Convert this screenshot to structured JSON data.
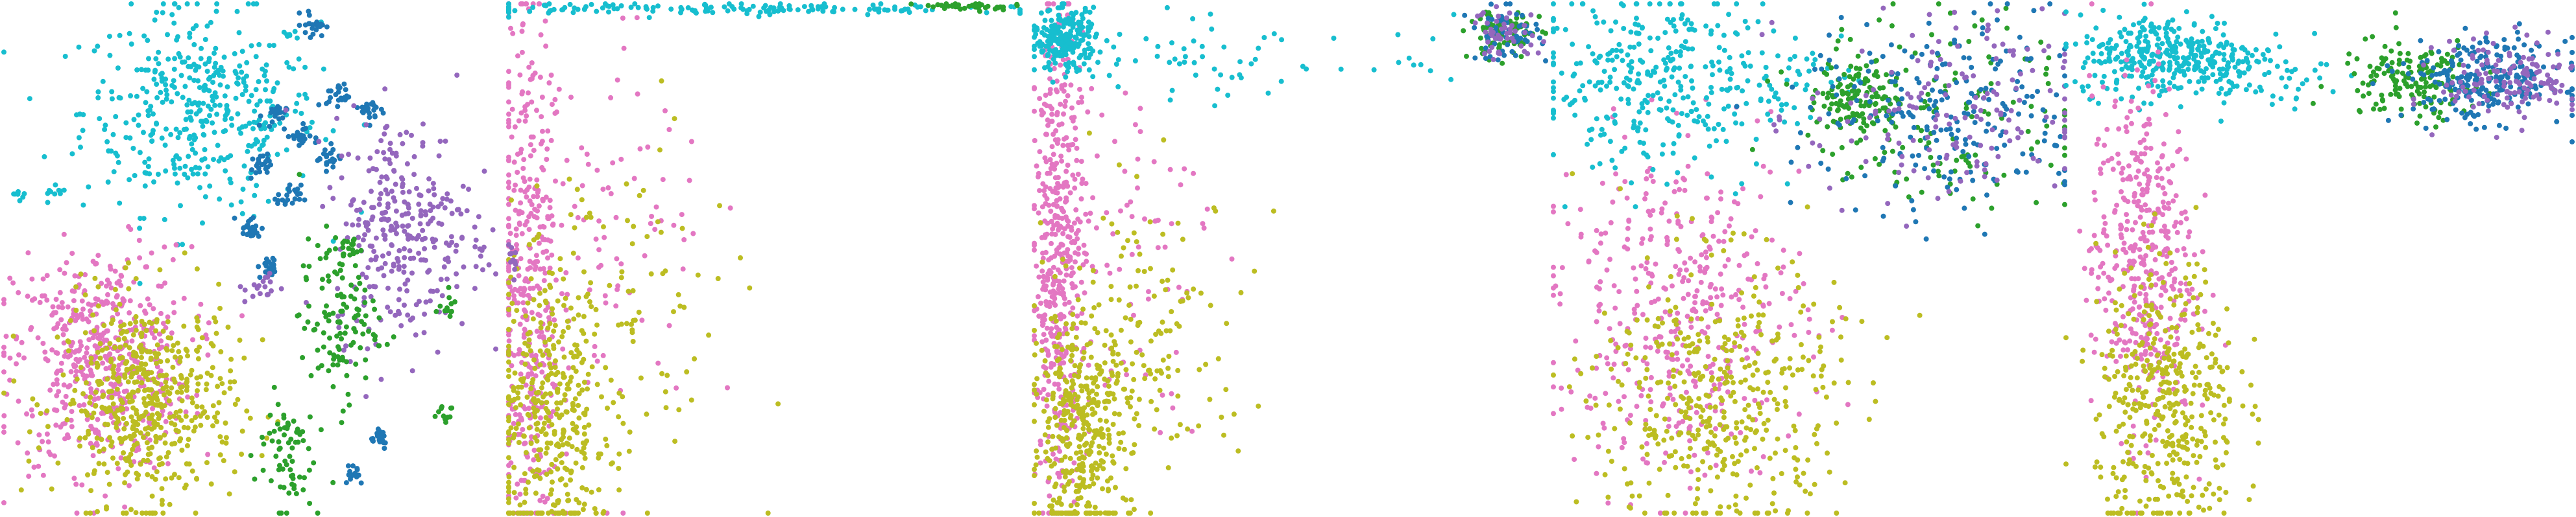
{
  "chart_data": [
    {
      "type": "scatter",
      "grid": false,
      "xlim": [
        0,
        100
      ],
      "ylim": [
        0,
        100
      ],
      "series": [
        {
          "color": "#17becf",
          "clusters": [
            {
              "cx": 40,
              "cy": 79,
              "sx": 12,
              "sy": 10,
              "n": 420
            },
            {
              "cx": 3,
              "cy": 63,
              "sx": 1,
              "sy": 1,
              "n": 8
            },
            {
              "cx": 10,
              "cy": 62,
              "sx": 1.5,
              "sy": 1,
              "n": 10
            }
          ]
        },
        {
          "color": "#e377c2",
          "clusters": [
            {
              "cx": 20,
              "cy": 30,
              "sx": 9,
              "sy": 11,
              "n": 520
            }
          ]
        },
        {
          "color": "#bcbd22",
          "clusters": [
            {
              "cx": 29,
              "cy": 22,
              "sx": 9,
              "sy": 10,
              "n": 520
            }
          ]
        },
        {
          "color": "#1f77b4",
          "clusters": [
            {
              "cx": 55,
              "cy": 78,
              "sx": 1.2,
              "sy": 1.2,
              "n": 22
            },
            {
              "cx": 60,
              "cy": 74,
              "sx": 1.2,
              "sy": 1.2,
              "n": 22
            },
            {
              "cx": 52,
              "cy": 68,
              "sx": 1.2,
              "sy": 1.2,
              "n": 22
            },
            {
              "cx": 58,
              "cy": 62,
              "sx": 1.2,
              "sy": 1.2,
              "n": 22
            },
            {
              "cx": 50,
              "cy": 56,
              "sx": 1.2,
              "sy": 1.2,
              "n": 22
            },
            {
              "cx": 54,
              "cy": 48,
              "sx": 1.2,
              "sy": 1.2,
              "n": 22
            },
            {
              "cx": 63,
              "cy": 96,
              "sx": 1.2,
              "sy": 1.2,
              "n": 22
            },
            {
              "cx": 68,
              "cy": 82,
              "sx": 1.2,
              "sy": 1.2,
              "n": 22
            },
            {
              "cx": 66,
              "cy": 70,
              "sx": 1.2,
              "sy": 1.2,
              "n": 22
            },
            {
              "cx": 75,
              "cy": 79,
              "sx": 1.2,
              "sy": 1.2,
              "n": 22
            },
            {
              "cx": 76,
              "cy": 15,
              "sx": 1.2,
              "sy": 1.2,
              "n": 22
            },
            {
              "cx": 71,
              "cy": 8,
              "sx": 1.2,
              "sy": 1.2,
              "n": 16
            }
          ]
        },
        {
          "color": "#9467bd",
          "clusters": [
            {
              "cx": 81,
              "cy": 56,
              "sx": 7,
              "sy": 11,
              "n": 300
            },
            {
              "cx": 53,
              "cy": 44,
              "sx": 2,
              "sy": 1.5,
              "n": 18
            },
            {
              "cx": 97,
              "cy": 50,
              "sx": 1,
              "sy": 2,
              "n": 8
            }
          ]
        },
        {
          "color": "#2ca02c",
          "clusters": [
            {
              "cx": 68,
              "cy": 38,
              "sx": 4,
              "sy": 8,
              "n": 120
            },
            {
              "cx": 57,
              "cy": 12,
              "sx": 3,
              "sy": 6,
              "n": 70
            },
            {
              "cx": 70,
              "cy": 52,
              "sx": 1.5,
              "sy": 1.5,
              "n": 18
            },
            {
              "cx": 90,
              "cy": 40,
              "sx": 1.2,
              "sy": 1.2,
              "n": 12
            },
            {
              "cx": 89,
              "cy": 20,
              "sx": 1.2,
              "sy": 1.2,
              "n": 12
            }
          ]
        }
      ]
    },
    {
      "type": "scatter",
      "grid": false,
      "xlim": [
        0,
        100
      ],
      "ylim": [
        0,
        100
      ],
      "series": [
        {
          "color": "#e377c2",
          "clusters": [
            {
              "cx": 4,
              "cy": 45,
              "sx": 3,
              "sy": 28,
              "n": 380
            },
            {
              "cx": 15,
              "cy": 55,
              "sx": 12,
              "sy": 22,
              "n": 120
            }
          ]
        },
        {
          "color": "#bcbd22",
          "clusters": [
            {
              "cx": 8,
              "cy": 18,
              "sx": 6,
              "sy": 14,
              "n": 360
            },
            {
              "cx": 20,
              "cy": 35,
              "sx": 12,
              "sy": 18,
              "n": 110
            }
          ]
        },
        {
          "color": "#17becf",
          "clusters": [
            {
              "cx": 40,
              "cy": 99,
              "sx": 30,
              "sy": 0.6,
              "n": 160
            }
          ]
        },
        {
          "color": "#2ca02c",
          "clusters": [
            {
              "cx": 90,
              "cy": 99.5,
              "sx": 5,
              "sy": 0.4,
              "n": 40
            }
          ]
        },
        {
          "color": "#9467bd",
          "clusters": [
            {
              "cx": 0.5,
              "cy": 50,
              "sx": 0.5,
              "sy": 2,
              "n": 12
            }
          ]
        }
      ]
    },
    {
      "type": "scatter",
      "grid": false,
      "xlim": [
        0,
        100
      ],
      "ylim": [
        0,
        100
      ],
      "series": [
        {
          "color": "#e377c2",
          "clusters": [
            {
              "cx": 5,
              "cy": 50,
              "sx": 2.5,
              "sy": 24,
              "n": 450
            },
            {
              "cx": 15,
              "cy": 55,
              "sx": 10,
              "sy": 18,
              "n": 90
            }
          ]
        },
        {
          "color": "#bcbd22",
          "clusters": [
            {
              "cx": 9,
              "cy": 15,
              "sx": 5,
              "sy": 12,
              "n": 380
            },
            {
              "cx": 22,
              "cy": 35,
              "sx": 10,
              "sy": 14,
              "n": 140
            }
          ]
        },
        {
          "color": "#17becf",
          "clusters": [
            {
              "cx": 6,
              "cy": 93,
              "sx": 3,
              "sy": 3,
              "n": 220
            },
            {
              "cx": 30,
              "cy": 88,
              "sx": 14,
              "sy": 4,
              "n": 50
            },
            {
              "cx": 70,
              "cy": 88,
              "sx": 10,
              "sy": 3,
              "n": 14
            }
          ]
        },
        {
          "color": "#2ca02c",
          "clusters": [
            {
              "cx": 92,
              "cy": 94,
              "sx": 3.5,
              "sy": 2.5,
              "n": 90
            }
          ]
        },
        {
          "color": "#1f77b4",
          "clusters": [
            {
              "cx": 92,
              "cy": 94,
              "sx": 3.5,
              "sy": 2.5,
              "n": 60
            }
          ]
        },
        {
          "color": "#9467bd",
          "clusters": [
            {
              "cx": 92,
              "cy": 94,
              "sx": 3.5,
              "sy": 2.5,
              "n": 50
            }
          ]
        }
      ]
    },
    {
      "type": "scatter",
      "grid": false,
      "xlim": [
        0,
        100
      ],
      "ylim": [
        0,
        100
      ],
      "series": [
        {
          "color": "#e377c2",
          "clusters": [
            {
              "cx": 25,
              "cy": 40,
              "sx": 12,
              "sy": 16,
              "n": 420
            }
          ]
        },
        {
          "color": "#bcbd22",
          "clusters": [
            {
              "cx": 32,
              "cy": 22,
              "sx": 12,
              "sy": 14,
              "n": 420
            }
          ]
        },
        {
          "color": "#17becf",
          "clusters": [
            {
              "cx": 18,
              "cy": 85,
              "sx": 12,
              "sy": 9,
              "n": 300
            },
            {
              "cx": 40,
              "cy": 85,
              "sx": 8,
              "sy": 4,
              "n": 60
            }
          ]
        },
        {
          "color": "#2ca02c",
          "clusters": [
            {
              "cx": 60,
              "cy": 82,
              "sx": 4,
              "sy": 4,
              "n": 120
            },
            {
              "cx": 77,
              "cy": 78,
              "sx": 14,
              "sy": 10,
              "n": 140
            }
          ]
        },
        {
          "color": "#1f77b4",
          "clusters": [
            {
              "cx": 77,
              "cy": 78,
              "sx": 14,
              "sy": 10,
              "n": 220
            }
          ]
        },
        {
          "color": "#9467bd",
          "clusters": [
            {
              "cx": 77,
              "cy": 78,
              "sx": 14,
              "sy": 10,
              "n": 160
            }
          ]
        }
      ]
    },
    {
      "type": "scatter",
      "grid": false,
      "xlim": [
        0,
        100
      ],
      "ylim": [
        0,
        100
      ],
      "series": [
        {
          "color": "#17becf",
          "clusters": [
            {
              "cx": 20,
              "cy": 90,
              "sx": 9,
              "sy": 4,
              "n": 330
            },
            {
              "cx": 38,
              "cy": 86,
              "sx": 7,
              "sy": 3,
              "n": 60
            }
          ]
        },
        {
          "color": "#e377c2",
          "clusters": [
            {
              "cx": 15,
              "cy": 50,
              "sx": 5,
              "sy": 17,
              "n": 420
            }
          ]
        },
        {
          "color": "#bcbd22",
          "clusters": [
            {
              "cx": 20,
              "cy": 22,
              "sx": 7,
              "sy": 14,
              "n": 420
            }
          ]
        },
        {
          "color": "#2ca02c",
          "clusters": [
            {
              "cx": 68,
              "cy": 85,
              "sx": 7,
              "sy": 4,
              "n": 160
            }
          ]
        },
        {
          "color": "#1f77b4",
          "clusters": [
            {
              "cx": 83,
              "cy": 85,
              "sx": 8,
              "sy": 4,
              "n": 240
            }
          ]
        },
        {
          "color": "#9467bd",
          "clusters": [
            {
              "cx": 88,
              "cy": 85,
              "sx": 7,
              "sy": 4,
              "n": 140
            }
          ]
        }
      ]
    }
  ]
}
